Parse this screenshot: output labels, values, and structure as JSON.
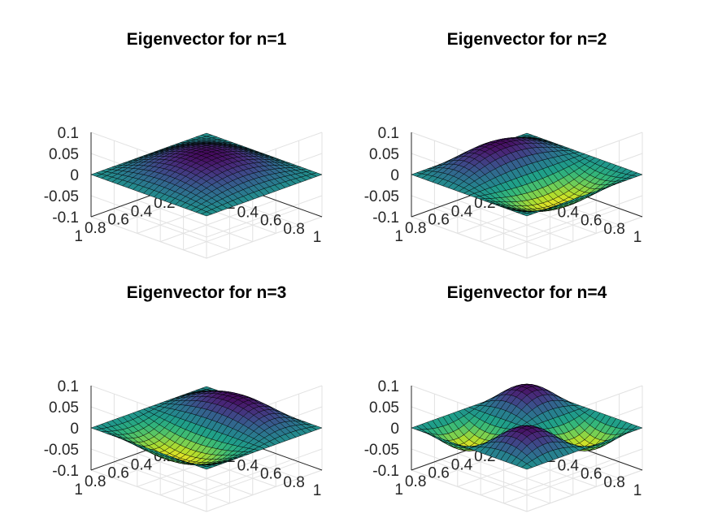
{
  "chart_data": [
    {
      "type": "surface",
      "title": "Eigenvector for n=1",
      "mode": [
        1,
        1
      ],
      "amplitude": 0.05,
      "xlim": [
        0,
        1
      ],
      "ylim": [
        0,
        1
      ],
      "zlim": [
        -0.1,
        0.1
      ],
      "xticks": [
        "0",
        "0.2",
        "0.4",
        "0.6",
        "0.8",
        "1"
      ],
      "yticks": [
        "0",
        "0.2",
        "0.4",
        "0.6",
        "0.8",
        "1"
      ],
      "zticks": [
        "-0.1",
        "-0.05",
        "0",
        "0.05",
        "0.1"
      ],
      "grid": true,
      "colormap": "viridis"
    },
    {
      "type": "surface",
      "title": "Eigenvector for n=2",
      "mode": [
        2,
        1
      ],
      "amplitude": 0.05,
      "xlim": [
        0,
        1
      ],
      "ylim": [
        0,
        1
      ],
      "zlim": [
        -0.1,
        0.1
      ],
      "xticks": [
        "0",
        "0.2",
        "0.4",
        "0.6",
        "0.8",
        "1"
      ],
      "yticks": [
        "0",
        "0.2",
        "0.4",
        "0.6",
        "0.8",
        "1"
      ],
      "zticks": [
        "-0.1",
        "-0.05",
        "0",
        "0.05",
        "0.1"
      ],
      "grid": true,
      "colormap": "viridis"
    },
    {
      "type": "surface",
      "title": "Eigenvector for n=3",
      "mode": [
        1,
        2
      ],
      "amplitude": 0.05,
      "xlim": [
        0,
        1
      ],
      "ylim": [
        0,
        1
      ],
      "zlim": [
        -0.1,
        0.1
      ],
      "xticks": [
        "0",
        "0.2",
        "0.4",
        "0.6",
        "0.8",
        "1"
      ],
      "yticks": [
        "0",
        "0.2",
        "0.4",
        "0.6",
        "0.8",
        "1"
      ],
      "zticks": [
        "-0.1",
        "-0.05",
        "0",
        "0.05",
        "0.1"
      ],
      "grid": true,
      "colormap": "viridis"
    },
    {
      "type": "surface",
      "title": "Eigenvector for n=4",
      "mode": [
        2,
        2
      ],
      "amplitude": 0.05,
      "xlim": [
        0,
        1
      ],
      "ylim": [
        0,
        1
      ],
      "zlim": [
        -0.1,
        0.1
      ],
      "xticks": [
        "0",
        "0.2",
        "0.4",
        "0.6",
        "0.8",
        "1"
      ],
      "yticks": [
        "0",
        "0.2",
        "0.4",
        "0.6",
        "0.8",
        "1"
      ],
      "zticks": [
        "-0.1",
        "-0.05",
        "0",
        "0.05",
        "0.1"
      ],
      "grid": true,
      "colormap": "viridis"
    }
  ]
}
